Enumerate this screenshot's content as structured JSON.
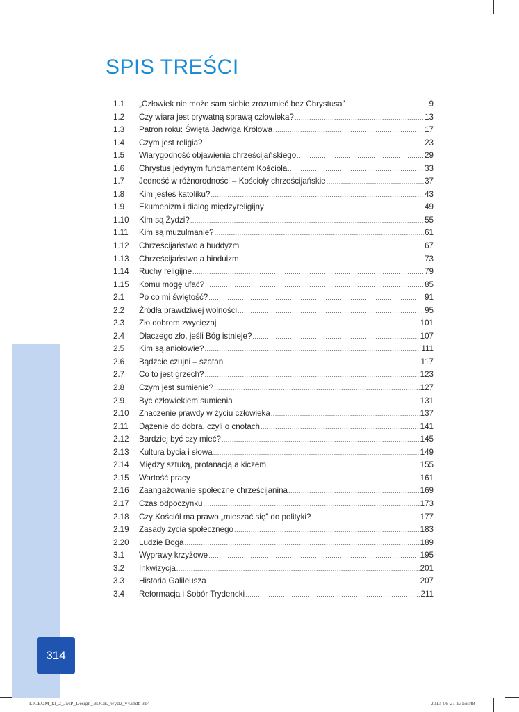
{
  "heading": "SPIS TREŚCI",
  "colors": {
    "heading": "#1b8bd6",
    "strip": "#c3d6f1",
    "page_box": "#1f55b0"
  },
  "entries": [
    {
      "num": "1.1",
      "title": "„Człowiek nie może sam siebie zrozumieć bez Chrystusa”",
      "page": "9"
    },
    {
      "num": "1.2",
      "title": "Czy wiara jest prywatną sprawą człowieka?",
      "page": "13"
    },
    {
      "num": "1.3",
      "title": "Patron roku: Święta Jadwiga Królowa",
      "page": "17"
    },
    {
      "num": "1.4",
      "title": "Czym jest religia?",
      "page": "23"
    },
    {
      "num": "1.5",
      "title": "Wiarygodność objawienia chrześcijańskiego",
      "page": "29"
    },
    {
      "num": "1.6",
      "title": "Chrystus jedynym fundamentem Kościoła",
      "page": "33"
    },
    {
      "num": "1.7",
      "title": "Jedność w różnorodności – Kościoły chrześcijańskie",
      "page": "37"
    },
    {
      "num": "1.8",
      "title": "Kim jesteś katoliku?",
      "page": "43"
    },
    {
      "num": "1.9",
      "title": "Ekumenizm i dialog międzyreligijny",
      "page": "49"
    },
    {
      "num": "1.10",
      "title": "Kim są Żydzi?",
      "page": "55"
    },
    {
      "num": "1.11",
      "title": "Kim są muzułmanie?",
      "page": "61"
    },
    {
      "num": "1.12",
      "title": "Chrześcijaństwo a buddyzm",
      "page": "67"
    },
    {
      "num": "1.13",
      "title": "Chrześcijaństwo a hinduizm",
      "page": "73"
    },
    {
      "num": "1.14",
      "title": "Ruchy religijne",
      "page": "79"
    },
    {
      "num": "1.15",
      "title": "Komu mogę ufać?",
      "page": "85"
    },
    {
      "num": "2.1",
      "title": "Po co mi świętość?",
      "page": "91"
    },
    {
      "num": "2.2",
      "title": "Źródła prawdziwej wolności",
      "page": "95"
    },
    {
      "num": "2.3",
      "title": "Zło dobrem zwyciężaj",
      "page": "101"
    },
    {
      "num": "2.4",
      "title": "Dlaczego zło, jeśli Bóg istnieje?",
      "page": "107"
    },
    {
      "num": "2.5",
      "title": "Kim są aniołowie?",
      "page": "111"
    },
    {
      "num": "2.6",
      "title": "Bądźcie czujni – szatan",
      "page": "117"
    },
    {
      "num": "2.7",
      "title": "Co to jest grzech?",
      "page": "123"
    },
    {
      "num": "2.8",
      "title": "Czym jest sumienie?",
      "page": "127"
    },
    {
      "num": "2.9",
      "title": "Być człowiekiem sumienia",
      "page": "131"
    },
    {
      "num": "2.10",
      "title": "Znaczenie prawdy w życiu człowieka",
      "page": "137"
    },
    {
      "num": "2.11",
      "title": "Dążenie do dobra, czyli o cnotach",
      "page": "141"
    },
    {
      "num": "2.12",
      "title": "Bardziej być czy mieć?",
      "page": "145"
    },
    {
      "num": "2.13",
      "title": "Kultura bycia i słowa",
      "page": "149"
    },
    {
      "num": "2.14",
      "title": "Między sztuką, profanacją a kiczem",
      "page": "155"
    },
    {
      "num": "2.15",
      "title": "Wartość pracy",
      "page": "161"
    },
    {
      "num": "2.16",
      "title": "Zaangażowanie społeczne chrześcijanina",
      "page": "169"
    },
    {
      "num": "2.17",
      "title": "Czas odpoczynku",
      "page": "173"
    },
    {
      "num": "2.18",
      "title": "Czy Kościół ma prawo „mieszać się” do polityki?",
      "page": "177"
    },
    {
      "num": "2.19",
      "title": "Zasady życia społecznego",
      "page": "183"
    },
    {
      "num": "2.20",
      "title": "Ludzie Boga",
      "page": "189"
    },
    {
      "num": "3.1",
      "title": "Wyprawy krzyżowe",
      "page": "195"
    },
    {
      "num": "3.2",
      "title": "Inkwizycja",
      "page": "201"
    },
    {
      "num": "3.3",
      "title": "Historia Galileusza",
      "page": "207"
    },
    {
      "num": "3.4",
      "title": "Reformacja i Sobór Trydencki",
      "page": "211"
    }
  ],
  "page_number": "314",
  "footer": {
    "file": "LICEUM_kl_2_JMP_Design_BOOK_wyd2_v4.indb   314",
    "datetime": "2013-06-21   13:56:48"
  }
}
